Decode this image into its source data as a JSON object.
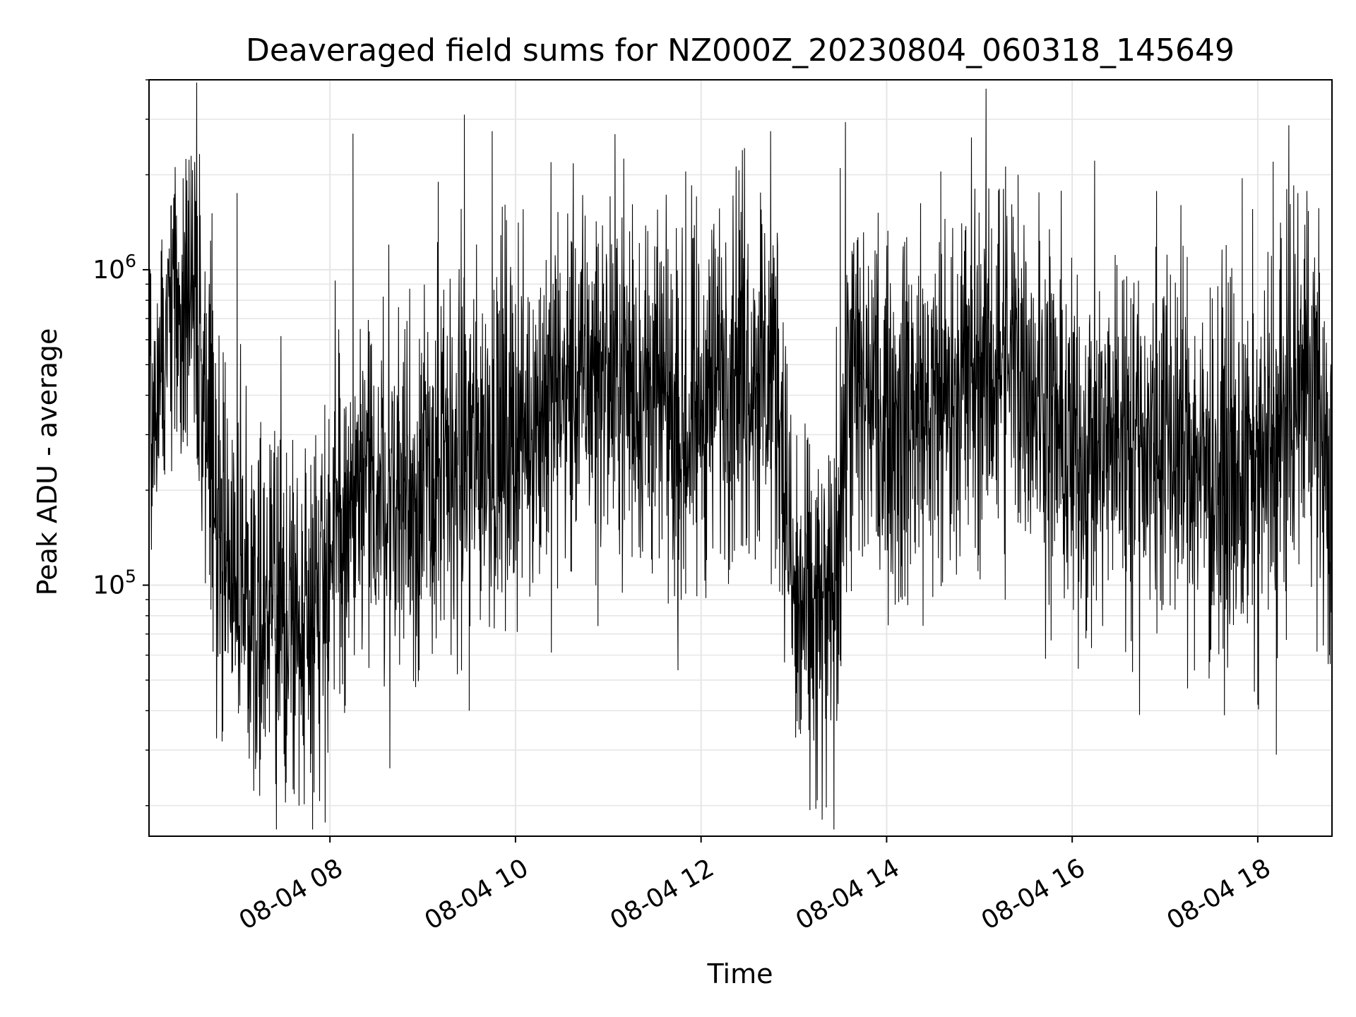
{
  "chart_data": {
    "type": "line",
    "title": "Deaveraged field sums for NZ000Z_20230804_060318_145649",
    "xlabel": "Time",
    "ylabel": "Peak ADU - average",
    "x_range": [
      "2023-08-04 06:03",
      "2023-08-04 18:48"
    ],
    "ylim": [
      16000,
      4000000
    ],
    "y_scale": "log",
    "grid": true,
    "line_color": "#000000",
    "grid_color": "#e6e6e6",
    "x_ticks": [
      {
        "value": "2023-08-04 08:00",
        "label": "08-04 08"
      },
      {
        "value": "2023-08-04 10:00",
        "label": "08-04 10"
      },
      {
        "value": "2023-08-04 12:00",
        "label": "08-04 12"
      },
      {
        "value": "2023-08-04 14:00",
        "label": "08-04 14"
      },
      {
        "value": "2023-08-04 16:00",
        "label": "08-04 16"
      },
      {
        "value": "2023-08-04 18:00",
        "label": "08-04 18"
      }
    ],
    "y_ticks": [
      {
        "value": 100000,
        "base": "10",
        "exp": "5"
      },
      {
        "value": 1000000,
        "base": "10",
        "exp": "6"
      }
    ],
    "series_envelope": [
      {
        "t": "2023-08-04 06:03",
        "y": 360000
      },
      {
        "t": "2023-08-04 06:20",
        "y": 700000
      },
      {
        "t": "2023-08-04 06:35",
        "y": 650000
      },
      {
        "t": "2023-08-04 06:45",
        "y": 200000
      },
      {
        "t": "2023-08-04 07:00",
        "y": 110000
      },
      {
        "t": "2023-08-04 07:20",
        "y": 80000
      },
      {
        "t": "2023-08-04 07:40",
        "y": 80000
      },
      {
        "t": "2023-08-04 08:10",
        "y": 150000
      },
      {
        "t": "2023-08-04 08:30",
        "y": 200000
      },
      {
        "t": "2023-08-04 09:00",
        "y": 200000
      },
      {
        "t": "2023-08-04 09:30",
        "y": 260000
      },
      {
        "t": "2023-08-04 10:00",
        "y": 300000
      },
      {
        "t": "2023-08-04 10:30",
        "y": 420000
      },
      {
        "t": "2023-08-04 11:00",
        "y": 480000
      },
      {
        "t": "2023-08-04 11:30",
        "y": 400000
      },
      {
        "t": "2023-08-04 11:50",
        "y": 300000
      },
      {
        "t": "2023-08-04 12:20",
        "y": 550000
      },
      {
        "t": "2023-08-04 12:50",
        "y": 450000
      },
      {
        "t": "2023-08-04 13:00",
        "y": 80000
      },
      {
        "t": "2023-08-04 13:25",
        "y": 75000
      },
      {
        "t": "2023-08-04 13:35",
        "y": 450000
      },
      {
        "t": "2023-08-04 14:00",
        "y": 350000
      },
      {
        "t": "2023-08-04 14:30",
        "y": 350000
      },
      {
        "t": "2023-08-04 15:00",
        "y": 500000
      },
      {
        "t": "2023-08-04 15:30",
        "y": 500000
      },
      {
        "t": "2023-08-04 16:00",
        "y": 250000
      },
      {
        "t": "2023-08-04 16:30",
        "y": 300000
      },
      {
        "t": "2023-08-04 17:00",
        "y": 300000
      },
      {
        "t": "2023-08-04 17:30",
        "y": 220000
      },
      {
        "t": "2023-08-04 18:00",
        "y": 220000
      },
      {
        "t": "2023-08-04 18:20",
        "y": 350000
      },
      {
        "t": "2023-08-04 18:35",
        "y": 500000
      },
      {
        "t": "2023-08-04 18:48",
        "y": 160000
      }
    ],
    "spikes": [
      {
        "t": "2023-08-04 06:25",
        "y": 1950000
      },
      {
        "t": "2023-08-04 07:00",
        "y": 1750000
      },
      {
        "t": "2023-08-04 07:15",
        "y": 28000
      },
      {
        "t": "2023-08-04 07:40",
        "y": 20000
      },
      {
        "t": "2023-08-04 08:15",
        "y": 2700000
      },
      {
        "t": "2023-08-04 09:10",
        "y": 1900000
      },
      {
        "t": "2023-08-04 09:30",
        "y": 40000
      },
      {
        "t": "2023-08-04 09:27",
        "y": 3100000
      },
      {
        "t": "2023-08-04 09:45",
        "y": 2750000
      },
      {
        "t": "2023-08-04 11:10",
        "y": 2250000
      },
      {
        "t": "2023-08-04 11:50",
        "y": 2050000
      },
      {
        "t": "2023-08-04 12:45",
        "y": 2750000
      },
      {
        "t": "2023-08-04 13:15",
        "y": 44000
      },
      {
        "t": "2023-08-04 13:30",
        "y": 2100000
      },
      {
        "t": "2023-08-04 14:35",
        "y": 2050000
      },
      {
        "t": "2023-08-04 15:25",
        "y": 2000000
      },
      {
        "t": "2023-08-04 17:50",
        "y": 1950000
      },
      {
        "t": "2023-08-04 18:10",
        "y": 2200000
      },
      {
        "t": "2023-08-04 18:12",
        "y": 29000
      }
    ]
  }
}
